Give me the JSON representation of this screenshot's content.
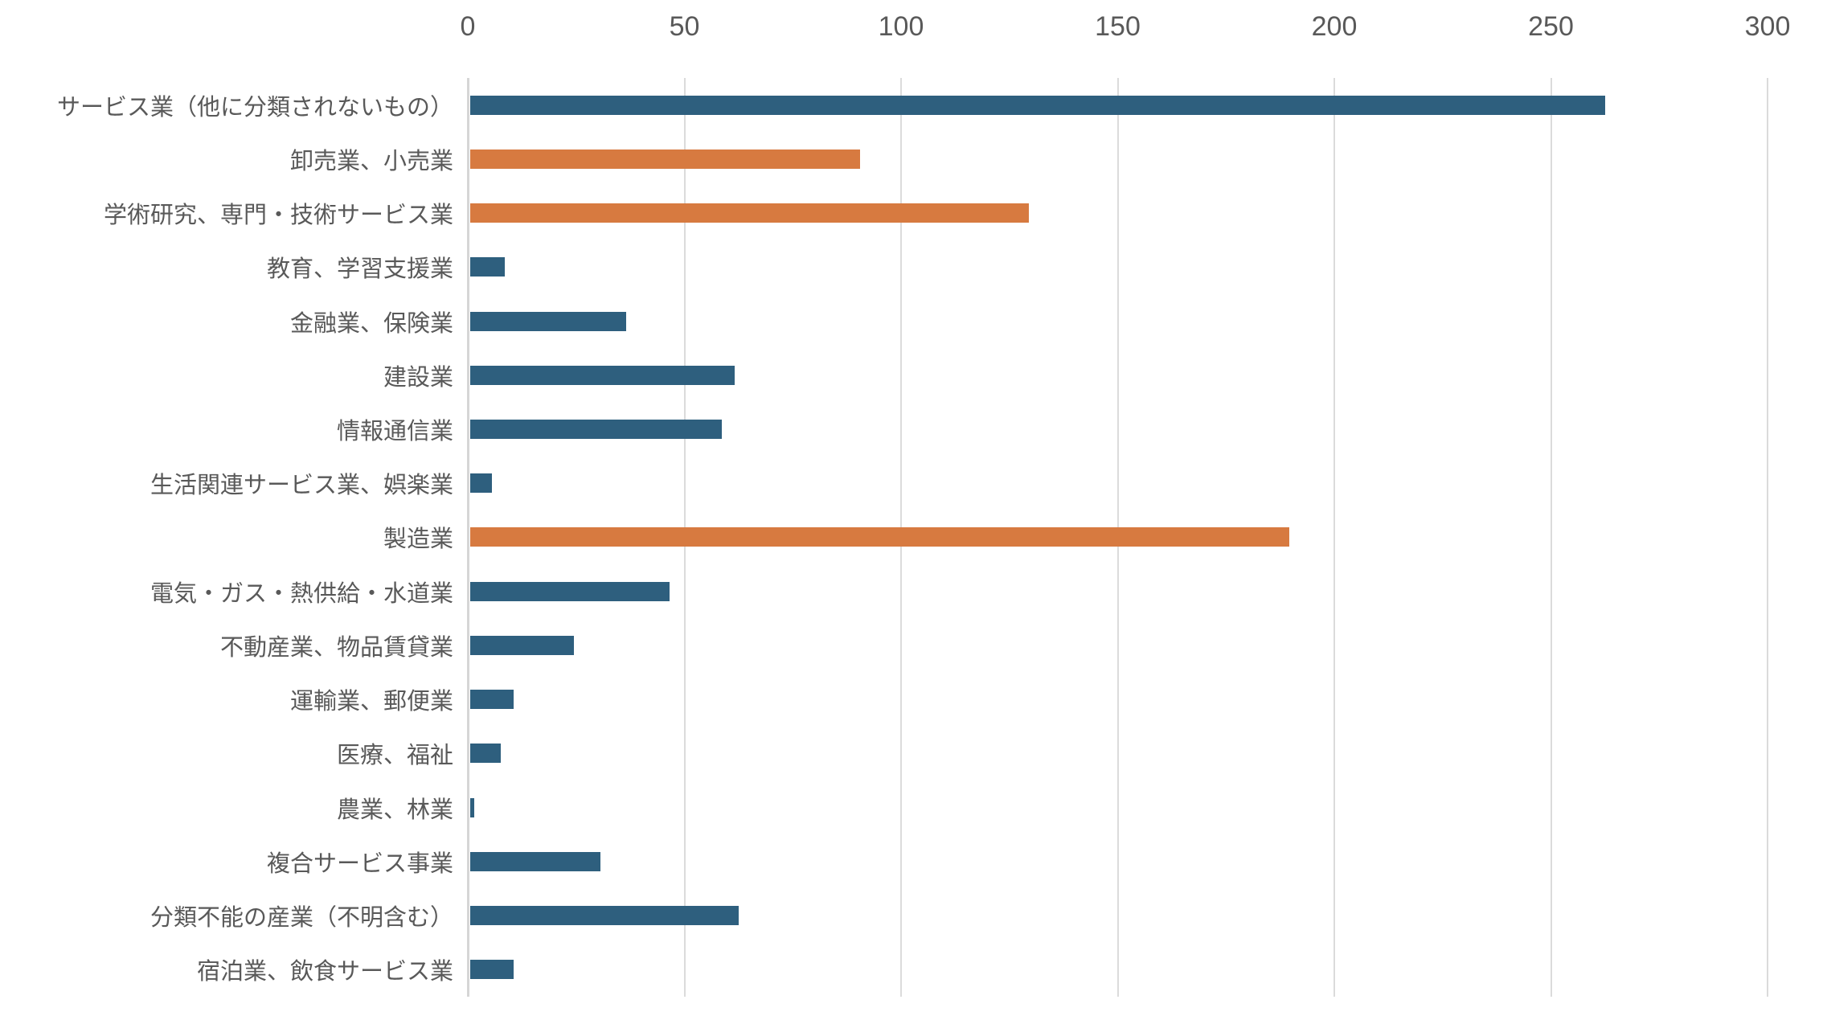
{
  "chart_data": {
    "type": "bar",
    "orientation": "horizontal",
    "title": "",
    "categories": [
      "サービス業（他に分類されないもの）",
      "卸売業、小売業",
      "学術研究、専門・技術サービス業",
      "教育、学習支援業",
      "金融業、保険業",
      "建設業",
      "情報通信業",
      "生活関連サービス業、娯楽業",
      "製造業",
      "電気・ガス・熱供給・水道業",
      "不動産業、物品賃貸業",
      "運輸業、郵便業",
      "医療、福祉",
      "農業、林業",
      "複合サービス事業",
      "分類不能の産業（不明含む）",
      "宿泊業、飲食サービス業"
    ],
    "values": [
      262,
      90,
      129,
      8,
      36,
      61,
      58,
      5,
      189,
      46,
      24,
      10,
      7,
      1,
      30,
      62,
      10
    ],
    "bar_colors": [
      "blue",
      "orange",
      "orange",
      "blue",
      "blue",
      "blue",
      "blue",
      "blue",
      "orange",
      "blue",
      "blue",
      "blue",
      "blue",
      "blue",
      "blue",
      "blue",
      "blue"
    ],
    "palette": {
      "blue": "#2E5F7E",
      "orange": "#D77A40"
    },
    "xlabel": "",
    "ylabel": "",
    "xlim": [
      0,
      300
    ],
    "x_ticks": [
      "0",
      "50",
      "100",
      "150",
      "200",
      "250",
      "300"
    ],
    "grid": true,
    "legend_position": "none",
    "axis_text_color": "#595959",
    "gridline_color": "#DBDBDB"
  }
}
